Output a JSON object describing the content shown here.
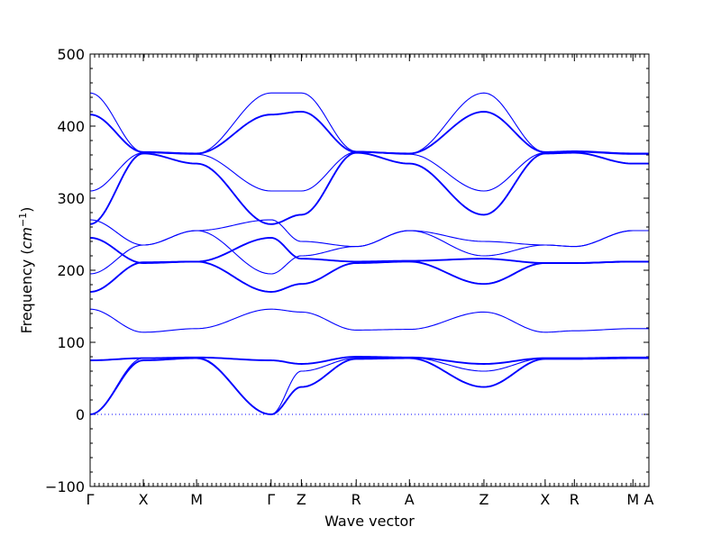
{
  "chart_data": {
    "type": "line",
    "title": "",
    "xlabel": "Wave vector",
    "ylabel": "Frequency (cm⁻¹)",
    "ylabel_prefix": "Frequency (",
    "ylabel_unit": "cm",
    "ylabel_exponent": "−1",
    "ylabel_suffix": ")",
    "ylim": [
      -100,
      500
    ],
    "yticks": [
      -100,
      0,
      100,
      200,
      300,
      400,
      500
    ],
    "ytick_labels": [
      "−100",
      "0",
      "100",
      "200",
      "300",
      "400",
      "500"
    ],
    "grid": false,
    "legend": "none",
    "reference_line": {
      "y": 0,
      "style": "dotted"
    },
    "color": "#0000ff",
    "x_positions": [
      0,
      1,
      2,
      3.4,
      3.97,
      5,
      6,
      7.4,
      8.55,
      9.1,
      10.2,
      10.5
    ],
    "x_tick_labels": [
      "Γ",
      "X",
      "M",
      "Γ",
      "Z",
      "R",
      "A",
      "Z",
      "X",
      "R",
      "M",
      "A"
    ],
    "series": [
      {
        "values": [
          0,
          75,
          78,
          0,
          38,
          77,
          78,
          38,
          77,
          77,
          78,
          78
        ]
      },
      {
        "values": [
          0,
          78,
          79,
          0,
          60,
          78,
          79,
          60,
          78,
          78,
          79,
          79
        ]
      },
      {
        "values": [
          75,
          78,
          79,
          75,
          70,
          80,
          79,
          70,
          78,
          78,
          79,
          79
        ]
      },
      {
        "values": [
          146,
          114,
          119,
          146,
          142,
          117,
          118,
          142,
          114,
          116,
          119,
          119
        ]
      },
      {
        "values": [
          170,
          211,
          212,
          170,
          181,
          210,
          212,
          181,
          210,
          210,
          212,
          212
        ]
      },
      {
        "values": [
          195,
          235,
          255,
          195,
          220,
          233,
          255,
          220,
          235,
          233,
          255,
          255
        ]
      },
      {
        "values": [
          245,
          210,
          212,
          245,
          216,
          212,
          213,
          216,
          210,
          210,
          212,
          212
        ]
      },
      {
        "values": [
          270,
          235,
          255,
          270,
          240,
          233,
          255,
          240,
          235,
          233,
          255,
          255
        ]
      },
      {
        "values": [
          264,
          362,
          348,
          264,
          277,
          363,
          348,
          277,
          362,
          363,
          348,
          348
        ]
      },
      {
        "values": [
          310,
          363,
          361,
          310,
          310,
          364,
          361,
          310,
          363,
          364,
          361,
          361
        ]
      },
      {
        "values": [
          416,
          364,
          362,
          416,
          420,
          364,
          362,
          420,
          364,
          365,
          362,
          362
        ]
      },
      {
        "values": [
          446,
          364,
          362,
          446,
          446,
          365,
          362,
          446,
          364,
          365,
          362,
          362
        ]
      }
    ]
  }
}
